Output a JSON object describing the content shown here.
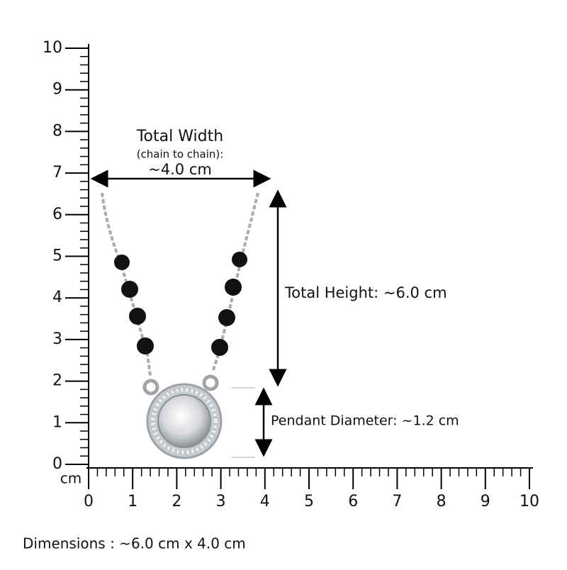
{
  "y_ruler": {
    "labels": [
      0,
      1,
      2,
      3,
      4,
      5,
      6,
      7,
      8,
      9,
      10
    ]
  },
  "x_ruler": {
    "labels": [
      0,
      1,
      2,
      3,
      4,
      5,
      6,
      7,
      8,
      9,
      10
    ]
  },
  "unit": "cm",
  "width_annotation": {
    "title": "Total Width",
    "subtitle": "(chain to chain):",
    "value": "~4.0 cm"
  },
  "height_annotation": "Total Height: ~6.0 cm",
  "pendant_annotation": "Pendant Diameter: ~1.2 cm",
  "dimensions": "Dimensions : ~6.0 cm x 4.0 cm"
}
